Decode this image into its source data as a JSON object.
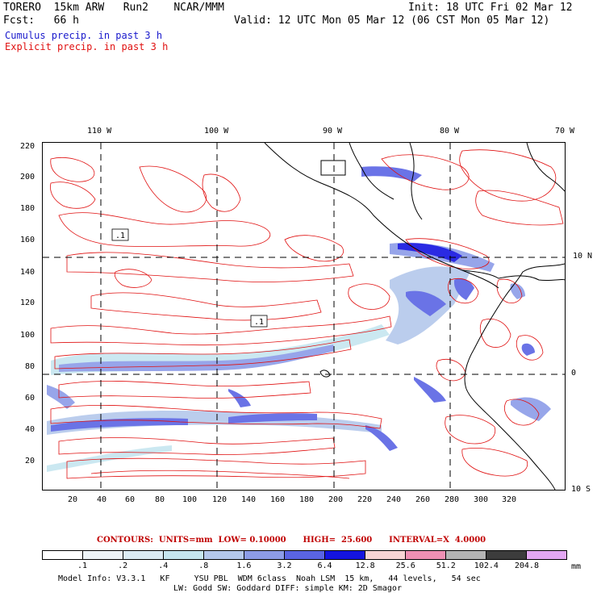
{
  "header": {
    "model": "TORERO  15km ARW   Run2    NCAR/MMM",
    "init": "Init: 18 UTC Fri 02 Mar 12",
    "forecast": "Fcst:   66 h",
    "valid": "Valid: 12 UTC Mon 05 Mar 12 (06 CST Mon 05 Mar 12)",
    "legend_blue": "Cumulus precip. in past 3 h",
    "legend_red": "Explicit precip. in past 3 h"
  },
  "map": {
    "top_lon_labels": [
      "110 W",
      "100 W",
      "90 W",
      "80 W",
      "70 W"
    ],
    "right_lat_labels": [
      "10 N",
      "0",
      "10 S"
    ],
    "left_y_ticks": [
      "220",
      "200",
      "180",
      "160",
      "140",
      "120",
      "100",
      "80",
      "60",
      "40",
      "20"
    ],
    "bottom_x_ticks": [
      "20",
      "40",
      "60",
      "80",
      "100",
      "120",
      "140",
      "160",
      "180",
      "200",
      "220",
      "240",
      "260",
      "280",
      "300",
      "320"
    ],
    "contour_labels": [
      ".1",
      ".1"
    ],
    "colors": {
      "contour": "#e01010",
      "coast": "#000000",
      "grid": "#000000"
    }
  },
  "contours_info": "CONTOURS:  UNITS=mm  LOW= 0.10000      HIGH=  25.600      INTERVAL=X  4.0000",
  "colorbar": {
    "labels": [
      ".1",
      ".2",
      ".4",
      ".8",
      "1.6",
      "3.2",
      "6.4",
      "12.8",
      "25.6",
      "51.2",
      "102.4",
      "204.8"
    ],
    "unit": "mm",
    "colors": [
      "#ffffff",
      "#eef4f8",
      "#dcecf4",
      "#c6e6f0",
      "#b4c8ec",
      "#8c9ce8",
      "#5a64e4",
      "#1414e0",
      "#f8d4d4",
      "#f090b4",
      "#b4b4b4",
      "#3c3c3c",
      "#e4a8f4"
    ]
  },
  "model_info": {
    "line1": "Model Info: V3.3.1   KF     YSU PBL  WDM 6class  Noah LSM  15 km,   44 levels,   54 sec",
    "line2": "LW: Godd SW: Goddard DIFF: simple KM: 2D Smagor"
  }
}
